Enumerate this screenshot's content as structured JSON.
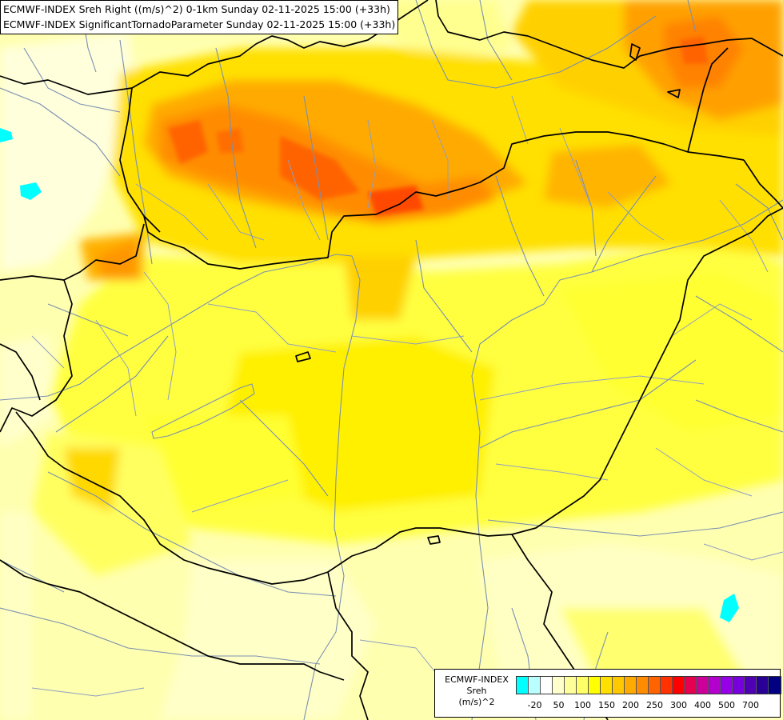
{
  "titles": {
    "line1": "ECMWF-INDEX Sreh Right ((m/s)^2) 0-1km Sunday 02-11-2025 15:00 (+33h)",
    "line2": "ECMWF-INDEX SignificantTornadoParameter Sunday 02-11-2025 15:00 (+33h)"
  },
  "legend": {
    "model": "ECMWF-INDEX",
    "variable": "Sreh",
    "unit": "(m/s)^2",
    "colors": [
      "#00ffff",
      "#b9ffff",
      "#ffffff",
      "#ffffcc",
      "#ffff99",
      "#ffff66",
      "#ffff00",
      "#ffe000",
      "#ffc800",
      "#ffaa00",
      "#ff8c00",
      "#ff6400",
      "#ff3200",
      "#ff0000",
      "#e60050",
      "#cc0099",
      "#b400cc",
      "#9600e6",
      "#7800dc",
      "#5000b4",
      "#280096",
      "#000080"
    ],
    "ticks": [
      {
        "label": "-20",
        "index": 1
      },
      {
        "label": "50",
        "index": 3
      },
      {
        "label": "100",
        "index": 5
      },
      {
        "label": "150",
        "index": 7
      },
      {
        "label": "200",
        "index": 9
      },
      {
        "label": "250",
        "index": 11
      },
      {
        "label": "300",
        "index": 13
      },
      {
        "label": "400",
        "index": 15
      },
      {
        "label": "500",
        "index": 17
      },
      {
        "label": "700",
        "index": 19
      }
    ]
  }
}
